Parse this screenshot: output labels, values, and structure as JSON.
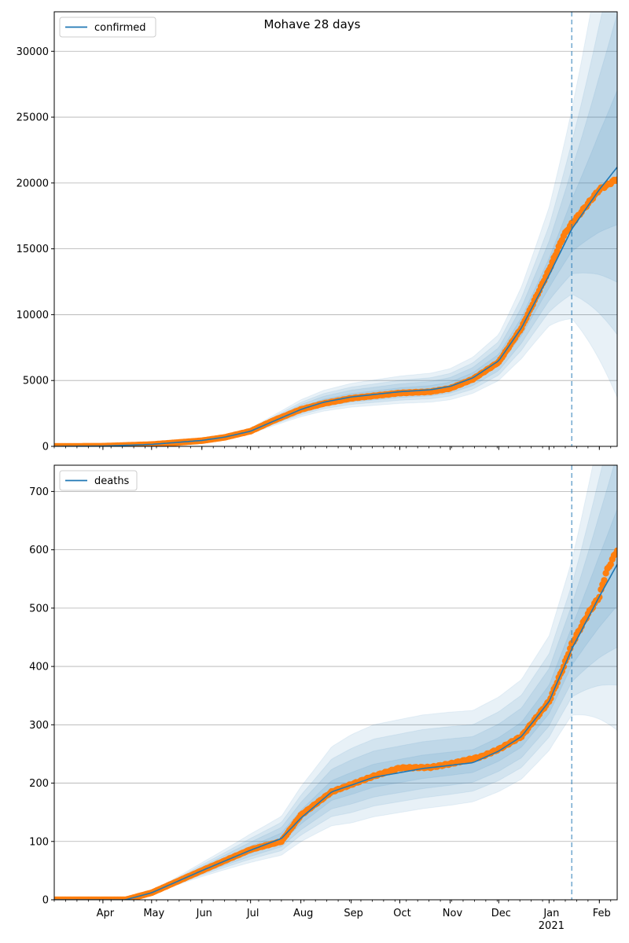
{
  "figure": {
    "title": "Mohave 28 days"
  },
  "chart_data": [
    {
      "type": "line",
      "series_name": "confirmed",
      "legend": "top-left",
      "grid": "y",
      "ylim": [
        0,
        33000
      ],
      "yticks": [
        0,
        5000,
        10000,
        15000,
        20000,
        25000,
        30000
      ],
      "ytick_labels": [
        "0",
        "5000",
        "10000",
        "15000",
        "20000",
        "25000",
        "30000"
      ],
      "xlim": [
        "2020-03-02",
        "2021-02-12"
      ],
      "forecast_start": "2021-01-15",
      "model_points": [
        [
          "2020-03-02",
          0
        ],
        [
          "2020-04-01",
          20
        ],
        [
          "2020-05-01",
          150
        ],
        [
          "2020-06-01",
          450
        ],
        [
          "2020-06-15",
          700
        ],
        [
          "2020-07-01",
          1150
        ],
        [
          "2020-07-15",
          1900
        ],
        [
          "2020-08-01",
          2800
        ],
        [
          "2020-08-15",
          3350
        ],
        [
          "2020-09-01",
          3750
        ],
        [
          "2020-10-01",
          4150
        ],
        [
          "2020-10-20",
          4300
        ],
        [
          "2020-11-01",
          4550
        ],
        [
          "2020-11-15",
          5200
        ],
        [
          "2020-12-01",
          6500
        ],
        [
          "2020-12-15",
          9000
        ],
        [
          "2021-01-01",
          13000
        ],
        [
          "2021-01-15",
          16500
        ],
        [
          "2021-02-01",
          19500
        ],
        [
          "2021-02-12",
          21200
        ]
      ],
      "band_spread_points": [
        [
          "2020-03-02",
          0.05
        ],
        [
          "2020-06-01",
          0.08
        ],
        [
          "2020-08-01",
          0.12
        ],
        [
          "2020-10-01",
          0.13
        ],
        [
          "2020-12-01",
          0.14
        ],
        [
          "2021-01-01",
          0.18
        ],
        [
          "2021-01-15",
          0.25
        ],
        [
          "2021-02-12",
          0.5
        ]
      ],
      "observed_points": [
        [
          "2020-03-02",
          0
        ],
        [
          "2020-04-01",
          15
        ],
        [
          "2020-05-01",
          140
        ],
        [
          "2020-06-01",
          430
        ],
        [
          "2020-06-15",
          680
        ],
        [
          "2020-07-01",
          1150
        ],
        [
          "2020-07-15",
          1950
        ],
        [
          "2020-08-01",
          2800
        ],
        [
          "2020-08-15",
          3250
        ],
        [
          "2020-09-01",
          3650
        ],
        [
          "2020-10-01",
          4050
        ],
        [
          "2020-10-20",
          4150
        ],
        [
          "2020-11-01",
          4400
        ],
        [
          "2020-11-15",
          5100
        ],
        [
          "2020-12-01",
          6400
        ],
        [
          "2020-12-15",
          9000
        ],
        [
          "2021-01-01",
          13400
        ],
        [
          "2021-01-10",
          16000
        ],
        [
          "2021-01-15",
          16900
        ],
        [
          "2021-02-01",
          19500
        ],
        [
          "2021-02-12",
          20300
        ]
      ]
    },
    {
      "type": "line",
      "series_name": "deaths",
      "legend": "top-left",
      "grid": "y",
      "ylim": [
        0,
        745
      ],
      "yticks": [
        0,
        100,
        200,
        300,
        400,
        500,
        600,
        700
      ],
      "ytick_labels": [
        "0",
        "100",
        "200",
        "300",
        "400",
        "500",
        "600",
        "700"
      ],
      "xlim": [
        "2020-03-02",
        "2021-02-12"
      ],
      "forecast_start": "2021-01-15",
      "model_points": [
        [
          "2020-03-02",
          0
        ],
        [
          "2020-04-15",
          0
        ],
        [
          "2020-05-01",
          12
        ],
        [
          "2020-06-01",
          50
        ],
        [
          "2020-07-01",
          85
        ],
        [
          "2020-07-20",
          105
        ],
        [
          "2020-08-01",
          140
        ],
        [
          "2020-08-20",
          185
        ],
        [
          "2020-09-15",
          210
        ],
        [
          "2020-10-15",
          225
        ],
        [
          "2020-11-15",
          235
        ],
        [
          "2020-12-01",
          255
        ],
        [
          "2020-12-15",
          280
        ],
        [
          "2021-01-01",
          340
        ],
        [
          "2021-01-15",
          430
        ],
        [
          "2021-02-01",
          520
        ],
        [
          "2021-02-12",
          575
        ]
      ],
      "band_spread_points": [
        [
          "2020-03-02",
          0.05
        ],
        [
          "2020-05-01",
          0.1
        ],
        [
          "2020-07-01",
          0.15
        ],
        [
          "2020-09-01",
          0.2
        ],
        [
          "2020-11-01",
          0.18
        ],
        [
          "2021-01-01",
          0.15
        ],
        [
          "2021-01-15",
          0.16
        ],
        [
          "2021-02-12",
          0.3
        ]
      ],
      "observed_points": [
        [
          "2020-03-02",
          0
        ],
        [
          "2020-04-15",
          0
        ],
        [
          "2020-05-01",
          12
        ],
        [
          "2020-06-01",
          50
        ],
        [
          "2020-07-01",
          86
        ],
        [
          "2020-07-20",
          100
        ],
        [
          "2020-08-01",
          145
        ],
        [
          "2020-08-20",
          185
        ],
        [
          "2020-09-15",
          212
        ],
        [
          "2020-10-01",
          226
        ],
        [
          "2020-10-20",
          227
        ],
        [
          "2020-11-01",
          233
        ],
        [
          "2020-11-20",
          245
        ],
        [
          "2020-12-01",
          258
        ],
        [
          "2020-12-15",
          280
        ],
        [
          "2021-01-01",
          340
        ],
        [
          "2021-01-10",
          400
        ],
        [
          "2021-01-15",
          438
        ],
        [
          "2021-01-25",
          490
        ],
        [
          "2021-02-01",
          520
        ],
        [
          "2021-02-05",
          560
        ],
        [
          "2021-02-12",
          600
        ]
      ]
    }
  ],
  "x_axis": {
    "major_ticks": [
      "2020-04-01",
      "2020-05-01",
      "2020-06-01",
      "2020-07-01",
      "2020-08-01",
      "2020-09-01",
      "2020-10-01",
      "2020-11-01",
      "2020-12-01",
      "2021-01-01",
      "2021-02-01"
    ],
    "major_labels": [
      "Apr",
      "May",
      "Jun",
      "Jul",
      "Aug",
      "Sep",
      "Oct",
      "Nov",
      "Dec",
      "Jan",
      "Feb"
    ],
    "year_label": "2021"
  },
  "colors": {
    "model": "#1f77b4",
    "observed": "#ff7f0e",
    "band": "#1f77b4",
    "grid": "#b0b0b0",
    "forecast_line": "#1f77b4"
  }
}
